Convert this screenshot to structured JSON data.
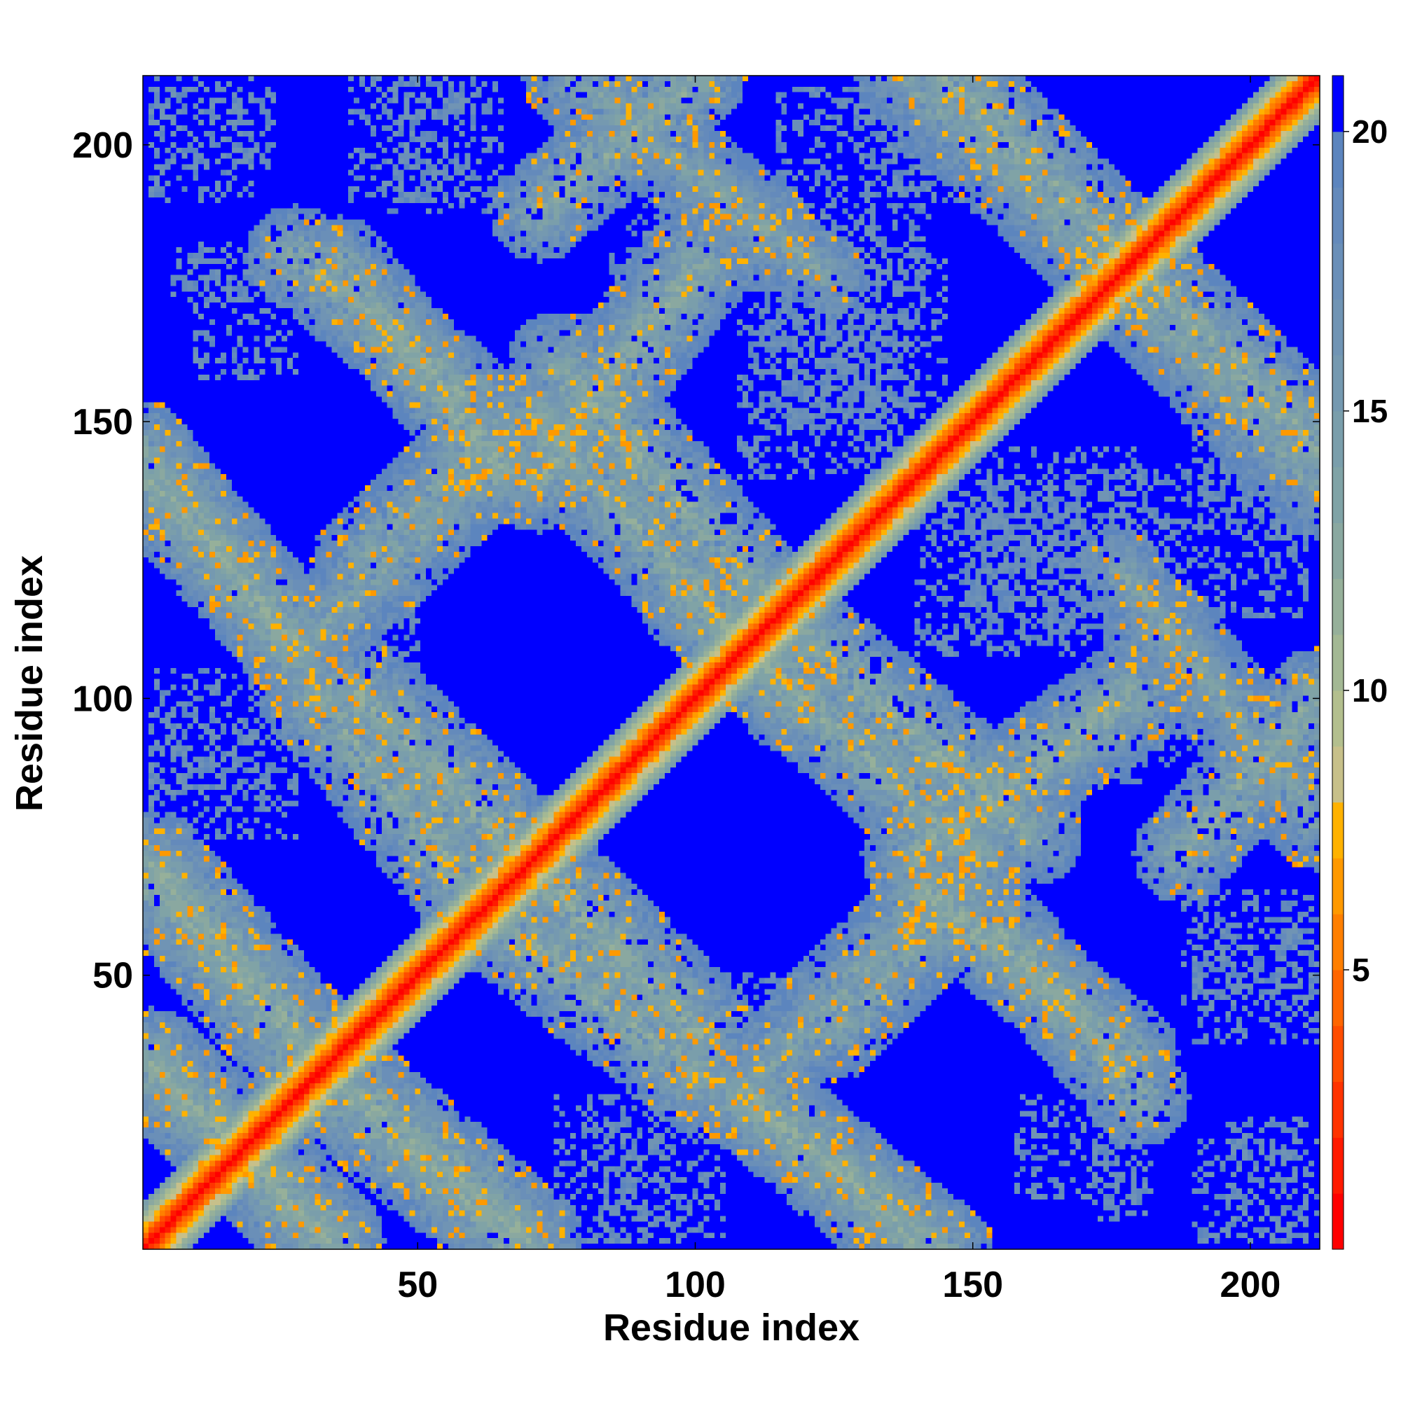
{
  "chart_data": {
    "type": "heatmap",
    "title": "",
    "xlabel": "Residue index",
    "ylabel": "Residue index",
    "n_residues": 212,
    "xlim": [
      1,
      212
    ],
    "ylim": [
      1,
      212
    ],
    "x_ticks": [
      50,
      100,
      150,
      200
    ],
    "y_ticks": [
      50,
      100,
      150,
      200
    ],
    "colorbar": {
      "min": 0,
      "max": 21,
      "ticks": [
        5,
        10,
        15,
        20
      ],
      "levels": [
        {
          "upto": 1,
          "color": "#ff0000"
        },
        {
          "upto": 2,
          "color": "#ff1a00"
        },
        {
          "upto": 3,
          "color": "#ff3300"
        },
        {
          "upto": 4,
          "color": "#ff4d00"
        },
        {
          "upto": 5,
          "color": "#ff6600"
        },
        {
          "upto": 6,
          "color": "#ff7f00"
        },
        {
          "upto": 7,
          "color": "#ff9900"
        },
        {
          "upto": 8,
          "color": "#ffb200"
        },
        {
          "upto": 9,
          "color": "#c7c08a"
        },
        {
          "upto": 10,
          "color": "#b3bf8e"
        },
        {
          "upto": 11,
          "color": "#a3b894"
        },
        {
          "upto": 12,
          "color": "#96b09a"
        },
        {
          "upto": 13,
          "color": "#8aa8a0"
        },
        {
          "upto": 14,
          "color": "#80a3a6"
        },
        {
          "upto": 15,
          "color": "#7a9eab"
        },
        {
          "upto": 16,
          "color": "#7599b0"
        },
        {
          "upto": 17,
          "color": "#7094b4"
        },
        {
          "upto": 18,
          "color": "#6a8fb8"
        },
        {
          "upto": 19,
          "color": "#648abb"
        },
        {
          "upto": 20,
          "color": "#5c85be"
        },
        {
          "upto": 21,
          "color": "#0000ff"
        }
      ]
    },
    "background_color": "#0000ff",
    "contact_bands": [
      {
        "x": [
          2,
          34
        ],
        "y": [
          34,
          2
        ],
        "width": 10,
        "center_value": 13
      },
      {
        "x": [
          34,
          68
        ],
        "y": [
          30,
          2
        ],
        "width": 10,
        "center_value": 13
      },
      {
        "x": [
          32,
          62
        ],
        "y": [
          100,
          62
        ],
        "width": 10,
        "center_value": 13
      },
      {
        "x": [
          70,
          100
        ],
        "y": [
          70,
          40
        ],
        "width": 11,
        "center_value": 13
      },
      {
        "x": [
          2,
          28
        ],
        "y": [
          70,
          40
        ],
        "width": 10,
        "center_value": 13
      },
      {
        "x": [
          36,
          66
        ],
        "y": [
          178,
          140
        ],
        "width": 9,
        "center_value": 13
      },
      {
        "x": [
          32,
          66
        ],
        "y": [
          112,
          145
        ],
        "width": 9,
        "center_value": 14
      },
      {
        "x": [
          72,
          100
        ],
        "y": [
          140,
          178
        ],
        "width": 10,
        "center_value": 13
      },
      {
        "x": [
          72,
          100
        ],
        "y": [
          188,
          212
        ],
        "width": 9,
        "center_value": 13
      },
      {
        "x": [
          72,
          118
        ],
        "y": [
          150,
          100
        ],
        "width": 10,
        "center_value": 13
      },
      {
        "x": [
          2,
          28
        ],
        "y": [
          140,
          110
        ],
        "width": 10,
        "center_value": 13
      },
      {
        "x": [
          118,
          160
        ],
        "y": [
          112,
          76
        ],
        "width": 10,
        "center_value": 13
      },
      {
        "x": [
          108,
          145
        ],
        "y": [
          28,
          0
        ],
        "width": 9,
        "center_value": 13
      },
      {
        "x": [
          125,
          150
        ],
        "y": [
          40,
          65
        ],
        "width": 9,
        "center_value": 14
      },
      {
        "x": [
          155,
          180
        ],
        "y": [
          58,
          28
        ],
        "width": 9,
        "center_value": 13
      },
      {
        "x": [
          185,
          212
        ],
        "y": [
          112,
          78
        ],
        "width": 9,
        "center_value": 14
      },
      {
        "x": [
          174,
          212
        ],
        "y": [
          178,
          138
        ],
        "width": 9,
        "center_value": 14
      },
      {
        "x": [
          145,
          180
        ],
        "y": [
          212,
          178
        ],
        "width": 10,
        "center_value": 13
      },
      {
        "x": [
          176,
          195
        ],
        "y": [
          124,
          100
        ],
        "width": 7,
        "center_value": 14
      }
    ],
    "sparse_regions": [
      {
        "x": [
          2,
          24
        ],
        "y": [
          95,
          80
        ]
      },
      {
        "x": [
          2,
          24
        ],
        "y": [
          210,
          195
        ]
      },
      {
        "x": [
          6,
          26
        ],
        "y": [
          182,
          172
        ]
      },
      {
        "x": [
          38,
          60
        ],
        "y": [
          212,
          190
        ]
      },
      {
        "x": [
          85,
          115
        ],
        "y": [
          190,
          174
        ]
      },
      {
        "x": [
          108,
          135
        ],
        "y": [
          178,
          140
        ]
      },
      {
        "x": [
          115,
          142
        ],
        "y": [
          210,
          176
        ]
      },
      {
        "x": [
          145,
          180
        ],
        "y": [
          145,
          110
        ]
      },
      {
        "x": [
          150,
          185
        ],
        "y": [
          140,
          112
        ]
      },
      {
        "x": [
          188,
          212
        ],
        "y": [
          155,
          130
        ]
      },
      {
        "x": [
          188,
          212
        ],
        "y": [
          65,
          45
        ]
      },
      {
        "x": [
          158,
          180
        ],
        "y": [
          28,
          10
        ]
      },
      {
        "x": [
          190,
          212
        ],
        "y": [
          20,
          2
        ]
      },
      {
        "x": [
          75,
          105
        ],
        "y": [
          28,
          2
        ]
      },
      {
        "x": [
          94,
          120
        ],
        "y": [
          50,
          28
        ]
      }
    ]
  }
}
